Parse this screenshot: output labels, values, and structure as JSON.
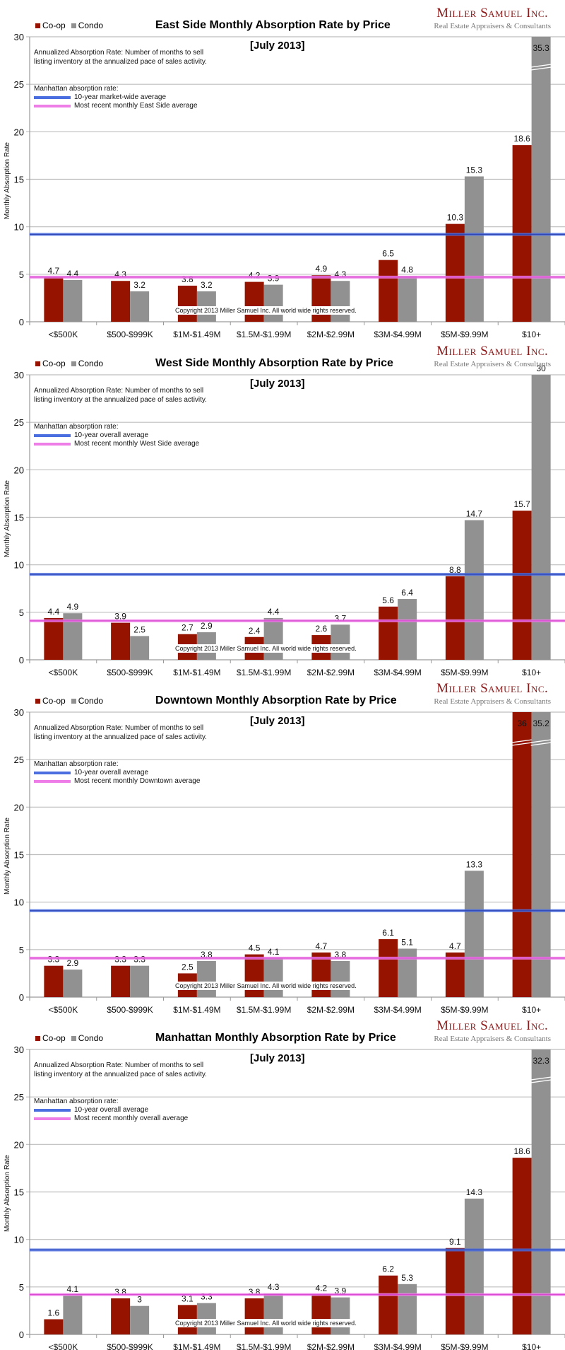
{
  "brand": {
    "name": "Miller Samuel Inc.",
    "tagline": "Real Estate Appraisers & Consultants"
  },
  "colors": {
    "coop": "#961300",
    "condo": "#919191",
    "ten_year_avg": "#4a6ee0",
    "recent_avg": "#ee7de8",
    "grid": "#bdbdbd"
  },
  "legend": {
    "coop": "Co-op",
    "condo": "Condo"
  },
  "note": "Annualized Absorption Rate: Number of months to sell listing inventory at the annualized pace of sales activity.",
  "reference_heading": "Manhattan absorption rate:",
  "copyright": "Copyright 2013 Miller Samuel Inc.  All world wide rights reserved.",
  "chart_data": [
    {
      "type": "bar",
      "title": "East Side Monthly Absorption Rate by Price",
      "subtitle": "[July 2013]",
      "xlabel": "",
      "ylabel": "Monthly Absorption Rate",
      "ylim": [
        0,
        30
      ],
      "yticks": [
        0,
        5,
        10,
        15,
        20,
        25,
        30
      ],
      "grid": true,
      "legend_position": "top-left",
      "categories": [
        "<$500K",
        "$500-$999K",
        "$1M-$1.49M",
        "$1.5M-$1.99M",
        "$2M-$2.99M",
        "$3M-$4.99M",
        "$5M-$9.99M",
        "$10+"
      ],
      "series": [
        {
          "name": "Co-op",
          "values": [
            4.7,
            4.3,
            3.8,
            4.2,
            4.9,
            6.5,
            10.3,
            18.6
          ]
        },
        {
          "name": "Condo",
          "values": [
            4.4,
            3.2,
            3.2,
            3.9,
            4.3,
            4.8,
            15.3,
            35.3
          ]
        }
      ],
      "reference_lines": [
        {
          "name": "10-year market-wide average",
          "value": 9.2
        },
        {
          "name": "Most recent monthly East Side average",
          "value": 4.7
        }
      ]
    },
    {
      "type": "bar",
      "title": "West Side Monthly Absorption Rate by Price",
      "subtitle": "[July 2013]",
      "xlabel": "",
      "ylabel": "Monthly Absorption Rate",
      "ylim": [
        0,
        30
      ],
      "yticks": [
        0,
        5,
        10,
        15,
        20,
        25,
        30
      ],
      "grid": true,
      "legend_position": "top-left",
      "categories": [
        "<$500K",
        "$500-$999K",
        "$1M-$1.49M",
        "$1.5M-$1.99M",
        "$2M-$2.99M",
        "$3M-$4.99M",
        "$5M-$9.99M",
        "$10+"
      ],
      "series": [
        {
          "name": "Co-op",
          "values": [
            4.4,
            3.9,
            2.7,
            2.4,
            2.6,
            5.6,
            8.8,
            15.7
          ]
        },
        {
          "name": "Condo",
          "values": [
            4.9,
            2.5,
            2.9,
            4.4,
            3.7,
            6.4,
            14.7,
            30
          ]
        }
      ],
      "reference_lines": [
        {
          "name": "10-year overall average",
          "value": 9.0
        },
        {
          "name": "Most recent monthly West Side average",
          "value": 4.1
        }
      ]
    },
    {
      "type": "bar",
      "title": "Downtown Monthly Absorption Rate by Price",
      "subtitle": "[July 2013]",
      "xlabel": "",
      "ylabel": "Monthly Absorption Rate",
      "ylim": [
        0,
        30
      ],
      "yticks": [
        0,
        5,
        10,
        15,
        20,
        25,
        30
      ],
      "grid": true,
      "legend_position": "top-left",
      "categories": [
        "<$500K",
        "$500-$999K",
        "$1M-$1.49M",
        "$1.5M-$1.99M",
        "$2M-$2.99M",
        "$3M-$4.99M",
        "$5M-$9.99M",
        "$10+"
      ],
      "series": [
        {
          "name": "Co-op",
          "values": [
            3.3,
            3.3,
            2.5,
            4.5,
            4.7,
            6.1,
            4.7,
            36
          ]
        },
        {
          "name": "Condo",
          "values": [
            2.9,
            3.3,
            3.8,
            4.1,
            3.8,
            5.1,
            13.3,
            35.2
          ]
        }
      ],
      "reference_lines": [
        {
          "name": "10-year overall average",
          "value": 9.1
        },
        {
          "name": "Most recent monthly Downtown average",
          "value": 4.1
        }
      ]
    },
    {
      "type": "bar",
      "title": "Manhattan Monthly Absorption Rate by Price",
      "subtitle": "[July 2013]",
      "xlabel": "",
      "ylabel": "Monthly Absorption Rate",
      "ylim": [
        0,
        30
      ],
      "yticks": [
        0,
        5,
        10,
        15,
        20,
        25,
        30
      ],
      "grid": true,
      "legend_position": "top-left",
      "categories": [
        "<$500K",
        "$500-$999K",
        "$1M-$1.49M",
        "$1.5M-$1.99M",
        "$2M-$2.99M",
        "$3M-$4.99M",
        "$5M-$9.99M",
        "$10+"
      ],
      "series": [
        {
          "name": "Co-op",
          "values": [
            1.6,
            3.8,
            3.1,
            3.8,
            4.2,
            6.2,
            9.1,
            18.6
          ]
        },
        {
          "name": "Condo",
          "values": [
            4.1,
            3.0,
            3.3,
            4.3,
            3.9,
            5.3,
            14.3,
            32.3
          ]
        }
      ],
      "reference_lines": [
        {
          "name": "10-year overall average",
          "value": 8.9
        },
        {
          "name": "Most recent monthly overall average",
          "value": 4.2
        }
      ]
    }
  ]
}
